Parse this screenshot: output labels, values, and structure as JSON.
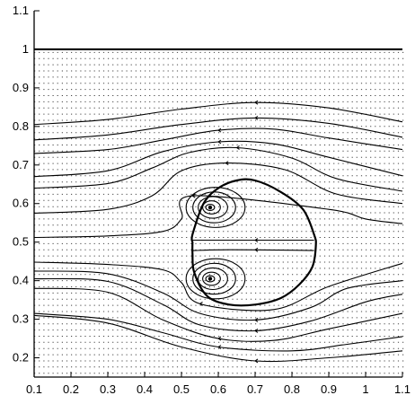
{
  "chart_data": {
    "type": "line",
    "title": "",
    "xlabel": "",
    "ylabel": "",
    "xlim": [
      0.1,
      1.1
    ],
    "ylim": [
      0.15,
      1.1
    ],
    "x_ticks": [
      "0.1",
      "0.2",
      "0.3",
      "0.4",
      "0.5",
      "0.6",
      "0.7",
      "0.8",
      "0.9",
      "1",
      "1.1"
    ],
    "y_ticks": [
      "0.2",
      "0.3",
      "0.4",
      "0.5",
      "0.6",
      "0.7",
      "0.8",
      "0.9",
      "1",
      "1.1"
    ],
    "grid": false,
    "vector_field": {
      "xspacing": 0.0125,
      "yspacing": 0.016,
      "x_range": [
        0.1,
        1.1
      ],
      "y_range": [
        0.16,
        1.0
      ]
    },
    "walls": [
      {
        "name": "upper wall",
        "y": 1.0
      }
    ],
    "series": [
      {
        "values": [
          [
            0.1,
            0.805
          ],
          [
            0.3,
            0.818
          ],
          [
            0.5,
            0.845
          ],
          [
            0.7,
            0.862
          ],
          [
            0.9,
            0.848
          ],
          [
            1.1,
            0.812
          ]
        ]
      },
      {
        "values": [
          [
            0.1,
            0.765
          ],
          [
            0.3,
            0.778
          ],
          [
            0.5,
            0.805
          ],
          [
            0.7,
            0.822
          ],
          [
            0.9,
            0.808
          ],
          [
            1.1,
            0.772
          ]
        ]
      },
      {
        "values": [
          [
            0.1,
            0.73
          ],
          [
            0.3,
            0.74
          ],
          [
            0.45,
            0.765
          ],
          [
            0.6,
            0.79
          ],
          [
            0.75,
            0.793
          ],
          [
            0.9,
            0.77
          ],
          [
            1.1,
            0.74
          ]
        ]
      },
      {
        "values": [
          [
            0.1,
            0.67
          ],
          [
            0.3,
            0.685
          ],
          [
            0.45,
            0.735
          ],
          [
            0.6,
            0.76
          ],
          [
            0.75,
            0.755
          ],
          [
            0.9,
            0.72
          ],
          [
            1.1,
            0.672
          ]
        ]
      },
      {
        "values": [
          [
            0.1,
            0.64
          ],
          [
            0.3,
            0.652
          ],
          [
            0.42,
            0.692
          ],
          [
            0.52,
            0.732
          ],
          [
            0.65,
            0.745
          ],
          [
            0.8,
            0.718
          ],
          [
            0.92,
            0.665
          ],
          [
            1.1,
            0.632
          ]
        ]
      },
      {
        "values": [
          [
            0.1,
            0.575
          ],
          [
            0.3,
            0.585
          ],
          [
            0.42,
            0.62
          ],
          [
            0.5,
            0.685
          ],
          [
            0.62,
            0.705
          ],
          [
            0.78,
            0.688
          ],
          [
            0.92,
            0.625
          ],
          [
            1.1,
            0.6
          ]
        ]
      },
      {
        "values": [
          [
            0.1,
            0.512
          ],
          [
            0.3,
            0.516
          ],
          [
            0.45,
            0.528
          ],
          [
            0.5,
            0.56
          ],
          [
            0.53,
            0.62
          ],
          [
            0.9,
            0.585
          ],
          [
            1.0,
            0.56
          ],
          [
            1.1,
            0.548
          ]
        ]
      },
      {
        "values": [
          [
            0.1,
            0.448
          ],
          [
            0.3,
            0.442
          ],
          [
            0.45,
            0.428
          ],
          [
            0.5,
            0.395
          ],
          [
            0.55,
            0.34
          ],
          [
            0.75,
            0.325
          ],
          [
            0.9,
            0.385
          ],
          [
            1.1,
            0.445
          ]
        ]
      },
      {
        "values": [
          [
            0.1,
            0.425
          ],
          [
            0.3,
            0.418
          ],
          [
            0.45,
            0.368
          ],
          [
            0.55,
            0.315
          ],
          [
            0.7,
            0.298
          ],
          [
            0.85,
            0.33
          ],
          [
            0.95,
            0.38
          ],
          [
            1.1,
            0.4
          ]
        ]
      },
      {
        "values": [
          [
            0.1,
            0.405
          ],
          [
            0.3,
            0.398
          ],
          [
            0.45,
            0.338
          ],
          [
            0.55,
            0.285
          ],
          [
            0.7,
            0.27
          ],
          [
            0.85,
            0.295
          ],
          [
            1.0,
            0.345
          ],
          [
            1.1,
            0.365
          ]
        ]
      },
      {
        "values": [
          [
            0.1,
            0.38
          ],
          [
            0.3,
            0.37
          ],
          [
            0.45,
            0.298
          ],
          [
            0.6,
            0.25
          ],
          [
            0.75,
            0.245
          ],
          [
            0.9,
            0.275
          ],
          [
            1.1,
            0.315
          ]
        ]
      },
      {
        "values": [
          [
            0.1,
            0.315
          ],
          [
            0.3,
            0.3
          ],
          [
            0.45,
            0.265
          ],
          [
            0.6,
            0.228
          ],
          [
            0.8,
            0.218
          ],
          [
            0.95,
            0.235
          ],
          [
            1.1,
            0.255
          ]
        ]
      },
      {
        "values": [
          [
            0.1,
            0.31
          ],
          [
            0.3,
            0.29
          ],
          [
            0.5,
            0.228
          ],
          [
            0.7,
            0.192
          ],
          [
            0.9,
            0.2
          ],
          [
            1.1,
            0.218
          ]
        ]
      },
      {
        "values": [
          [
            0.53,
            0.505
          ],
          [
            0.6,
            0.505
          ],
          [
            0.7,
            0.505
          ],
          [
            0.8,
            0.505
          ],
          [
            0.86,
            0.505
          ]
        ]
      },
      {
        "values": [
          [
            0.53,
            0.478
          ],
          [
            0.6,
            0.48
          ],
          [
            0.7,
            0.48
          ],
          [
            0.8,
            0.479
          ],
          [
            0.86,
            0.478
          ]
        ]
      }
    ],
    "separatrix": {
      "values": [
        [
          0.53,
          0.5
        ],
        [
          0.53,
          0.52
        ],
        [
          0.56,
          0.6
        ],
        [
          0.6,
          0.64
        ],
        [
          0.65,
          0.66
        ],
        [
          0.7,
          0.66
        ],
        [
          0.77,
          0.63
        ],
        [
          0.83,
          0.585
        ],
        [
          0.86,
          0.52
        ],
        [
          0.865,
          0.49
        ],
        [
          0.855,
          0.435
        ],
        [
          0.82,
          0.39
        ],
        [
          0.77,
          0.355
        ],
        [
          0.7,
          0.338
        ],
        [
          0.63,
          0.338
        ],
        [
          0.57,
          0.36
        ],
        [
          0.535,
          0.42
        ],
        [
          0.53,
          0.47
        ],
        [
          0.53,
          0.5
        ]
      ]
    },
    "vortices": [
      {
        "name": "upper vortex",
        "center": [
          0.578,
          0.59
        ],
        "loops": [
          [
            0.012,
            0.008
          ],
          [
            0.024,
            0.017
          ],
          [
            0.04,
            0.028
          ],
          [
            0.058,
            0.04
          ],
          [
            0.08,
            0.052
          ]
        ]
      },
      {
        "name": "lower vortex",
        "center": [
          0.578,
          0.405
        ],
        "loops": [
          [
            0.012,
            0.008
          ],
          [
            0.024,
            0.017
          ],
          [
            0.04,
            0.028
          ],
          [
            0.058,
            0.04
          ],
          [
            0.08,
            0.052
          ]
        ]
      }
    ]
  }
}
